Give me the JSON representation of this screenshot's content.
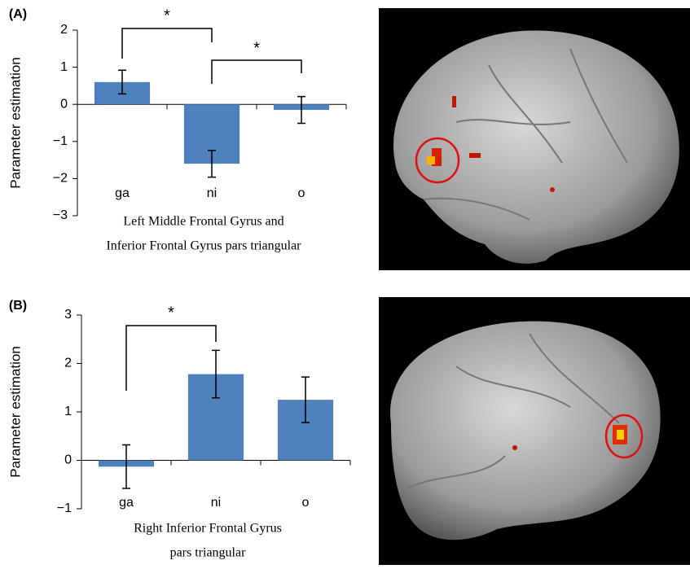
{
  "chart_data": [
    {
      "type": "bar",
      "panel_label": "(A)",
      "ylabel": "Parameter estimation",
      "caption": [
        "Left Middle Frontal Gyrus and",
        "Inferior Frontal Gyrus pars triangular"
      ],
      "categories": [
        "ga",
        "ni",
        "o"
      ],
      "values": [
        0.6,
        -1.6,
        -0.15
      ],
      "errors": [
        0.32,
        0.36,
        0.36
      ],
      "color": "#4f81bd",
      "ylim": [
        -3,
        2
      ],
      "yticks": [
        {
          "value": -3,
          "label": "−3"
        },
        {
          "value": -2,
          "label": "−2"
        },
        {
          "value": -1,
          "label": "−1"
        },
        0,
        1,
        2
      ],
      "significance": [
        {
          "from": 0,
          "to": 1,
          "label": "*"
        },
        {
          "from": 1,
          "to": 2,
          "label": "*"
        }
      ]
    },
    {
      "type": "bar",
      "panel_label": "(B)",
      "ylabel": "Parameter estimation",
      "caption": [
        "Right Inferior Frontal Gyrus",
        "pars triangular"
      ],
      "categories": [
        "ga",
        "ni",
        "o"
      ],
      "values": [
        -0.13,
        1.78,
        1.25
      ],
      "errors": [
        0.45,
        0.49,
        0.47
      ],
      "color": "#4f81bd",
      "ylim": [
        -1,
        3
      ],
      "yticks": [
        {
          "value": -1,
          "label": "−1"
        },
        0,
        1,
        2,
        3
      ],
      "significance": [
        {
          "from": 0,
          "to": 1,
          "label": "*"
        }
      ]
    }
  ]
}
